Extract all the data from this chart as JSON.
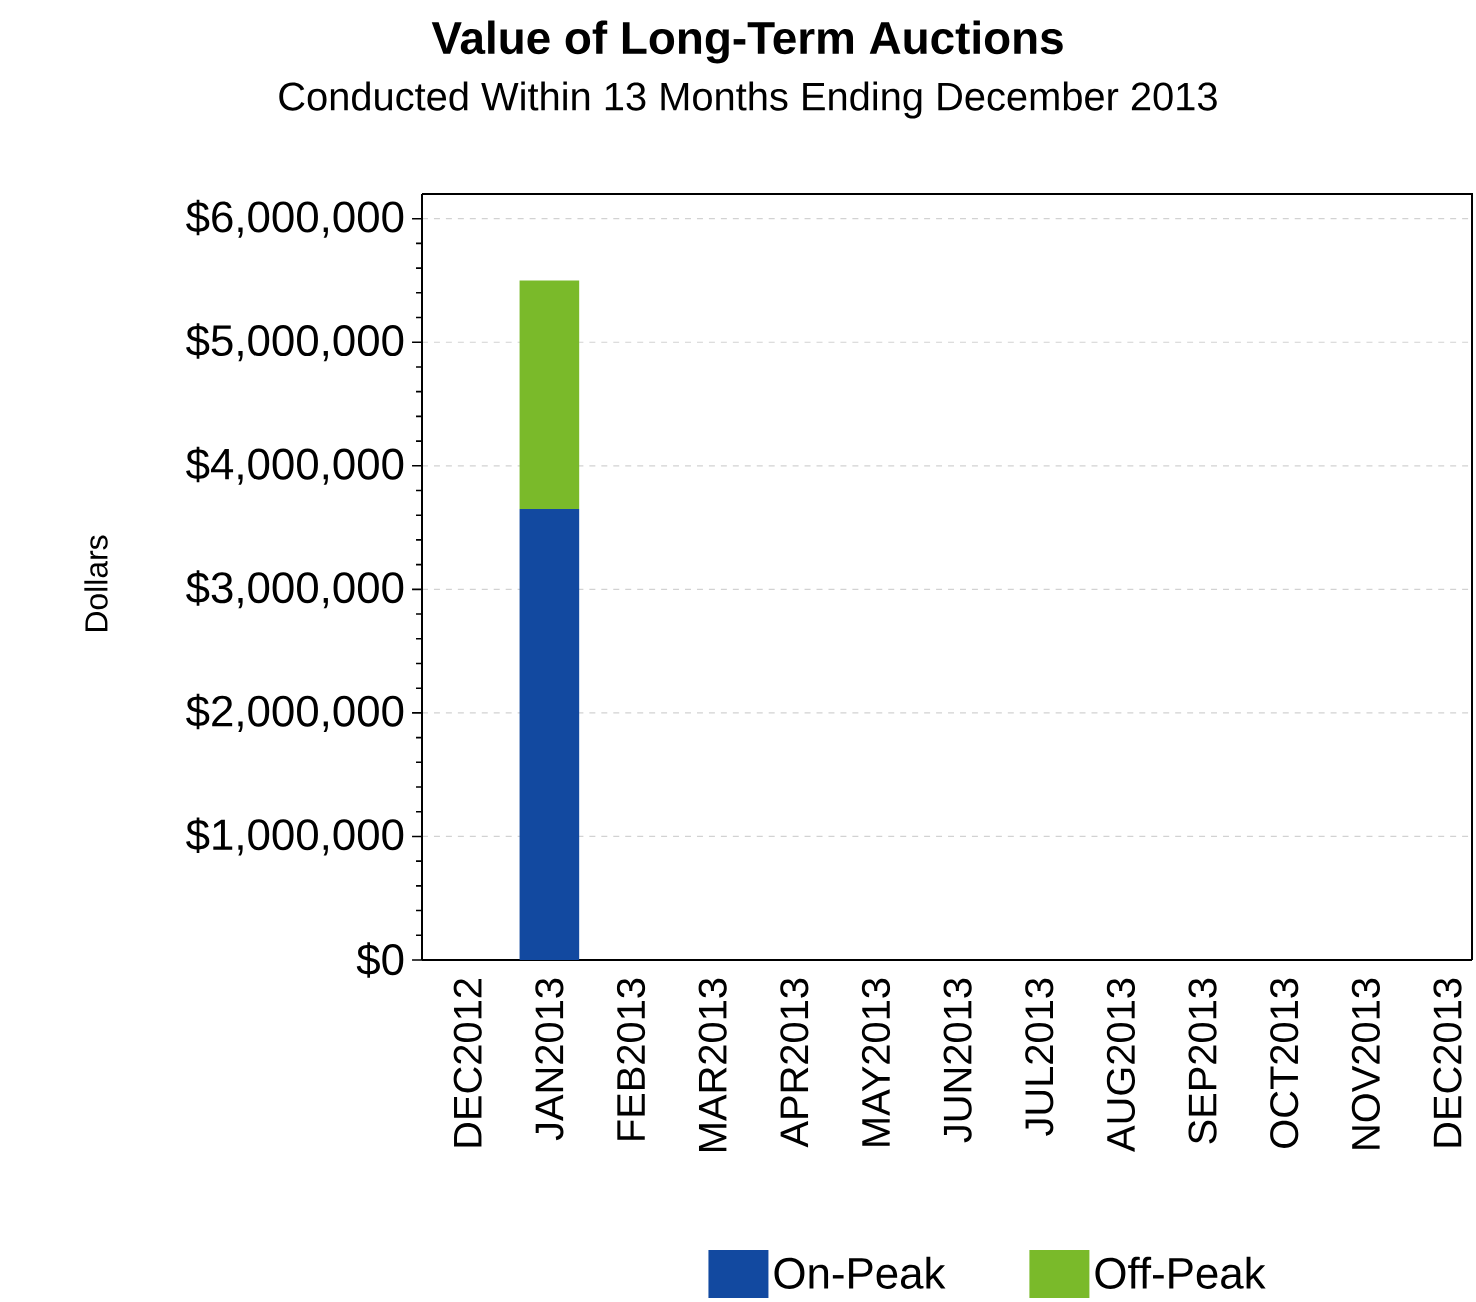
{
  "chart_data": {
    "type": "bar",
    "title": "Value of Long-Term Auctions",
    "subtitle": "Conducted Within 13 Months Ending December 2013",
    "ylabel": "Dollars",
    "stacked": true,
    "categories": [
      "DEC2012",
      "JAN2013",
      "FEB2013",
      "MAR2013",
      "APR2013",
      "MAY2013",
      "JUN2013",
      "JUL2013",
      "AUG2013",
      "SEP2013",
      "OCT2013",
      "NOV2013",
      "DEC2013"
    ],
    "series": [
      {
        "name": "On-Peak",
        "color": "#1249a0",
        "values": [
          0,
          3650000,
          0,
          0,
          0,
          0,
          0,
          0,
          0,
          0,
          0,
          0,
          0
        ]
      },
      {
        "name": "Off-Peak",
        "color": "#7aba2a",
        "values": [
          0,
          1850000,
          0,
          0,
          0,
          0,
          0,
          0,
          0,
          0,
          0,
          0,
          0
        ]
      }
    ],
    "ylim": [
      0,
      6200000
    ],
    "yticks": [
      {
        "value": 0,
        "label": "$0"
      },
      {
        "value": 1000000,
        "label": "$1,000,000"
      },
      {
        "value": 2000000,
        "label": "$2,000,000"
      },
      {
        "value": 3000000,
        "label": "$3,000,000"
      },
      {
        "value": 4000000,
        "label": "$4,000,000"
      },
      {
        "value": 5000000,
        "label": "$5,000,000"
      },
      {
        "value": 6000000,
        "label": "$6,000,000"
      }
    ],
    "grid": "y",
    "legend": "bottom"
  }
}
